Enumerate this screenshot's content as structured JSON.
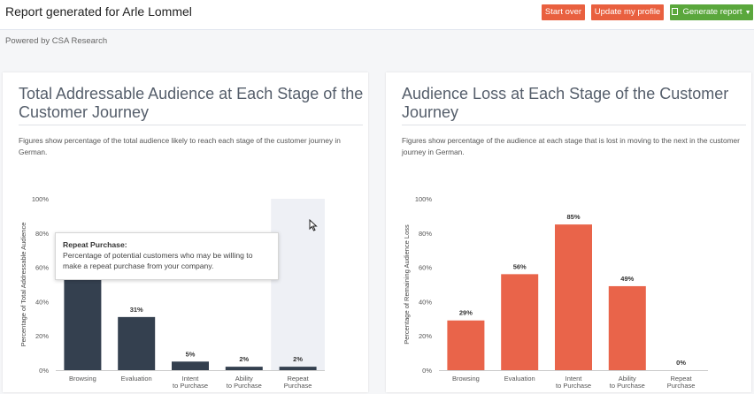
{
  "header": {
    "title": "Report generated for Arle Lommel",
    "start_over_label": "Start over",
    "update_profile_label": "Update my profile",
    "generate_report_label": "Generate report"
  },
  "powered_by": "Powered by CSA Research",
  "colors": {
    "navy_bar": "#34404f",
    "orange_bar": "#e9644a",
    "accent_red": "#e9603f",
    "accent_green": "#5aa73c"
  },
  "icons": [
    "document-icon",
    "caret-down-icon",
    "mouse-cursor-icon"
  ],
  "left_card": {
    "title": "Total Addressable Audience at Each Stage of the Customer Journey",
    "description": "Figures show percentage of the total audience likely to reach each stage of the customer journey in German.",
    "tooltip": {
      "title": "Repeat Purchase:",
      "text": "Percentage of potential customers who may be willing to make a repeat purchase from your company."
    }
  },
  "right_card": {
    "title": "Audience Loss at Each Stage of the Customer Journey",
    "description": "Figures show percentage of the audience at each stage that is lost in moving to the next in the customer journey in German."
  },
  "chart_data": [
    {
      "type": "bar",
      "categories": [
        [
          "Browsing"
        ],
        [
          "Evaluation"
        ],
        [
          "Intent",
          "to Purchase"
        ],
        [
          "Ability",
          "to Purchase"
        ],
        [
          "Repeat",
          "Purchase"
        ]
      ],
      "values": [
        55,
        31,
        5,
        2,
        2
      ],
      "data_labels": [
        "",
        "31%",
        "5%",
        "2%",
        "2%"
      ],
      "ylabel": "Percentage of Total Addressable Audience",
      "yticks": [
        "0%",
        "20%",
        "40%",
        "60%",
        "80%",
        "100%"
      ],
      "ylim": [
        0,
        100
      ],
      "highlighted_category": "Repeat Purchase",
      "color": "#34404f"
    },
    {
      "type": "bar",
      "categories": [
        [
          "Browsing"
        ],
        [
          "Evaluation"
        ],
        [
          "Intent",
          "to Purchase"
        ],
        [
          "Ability",
          "to Purchase"
        ],
        [
          "Repeat",
          "Purchase"
        ]
      ],
      "values": [
        29,
        56,
        85,
        49,
        0
      ],
      "data_labels": [
        "29%",
        "56%",
        "85%",
        "49%",
        "0%"
      ],
      "ylabel": "Percentage of Remaining Audience Loss",
      "yticks": [
        "0%",
        "20%",
        "40%",
        "60%",
        "80%",
        "100%"
      ],
      "ylim": [
        0,
        100
      ],
      "color": "#e9644a"
    }
  ]
}
